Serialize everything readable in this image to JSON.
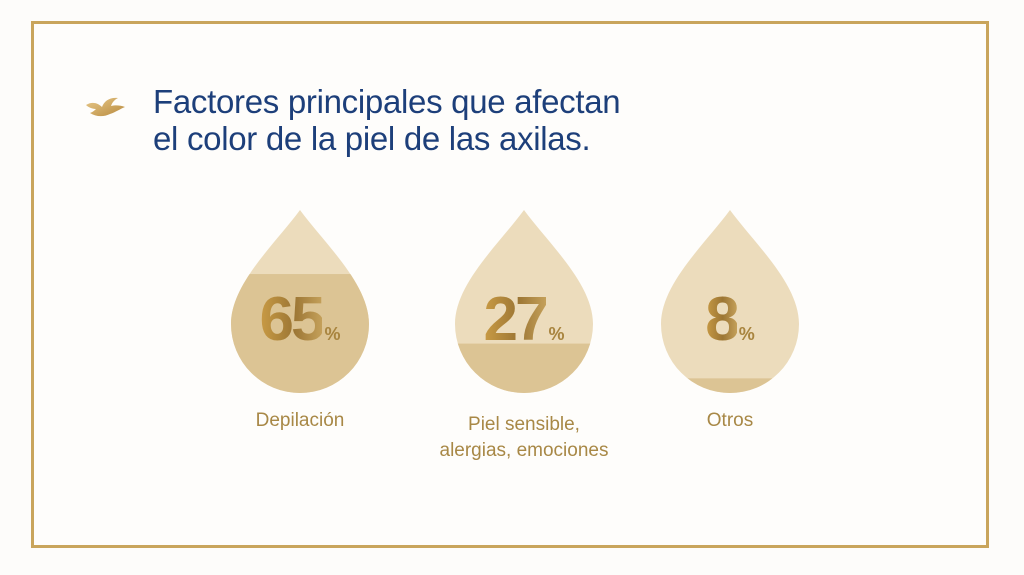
{
  "title": {
    "line1": "Factores principales que afectan",
    "line2": "el color de la piel de las axilas."
  },
  "colors": {
    "frame": "#c9a55c",
    "title": "#1d3f7a",
    "drop_light": "#ecdcbc",
    "drop_fill": "#dcc494",
    "value": "#b08a3e",
    "label": "#a88846"
  },
  "factors": [
    {
      "value": "65",
      "unit": "%",
      "label_lines": [
        "Depilación"
      ],
      "fill_fraction": 0.65
    },
    {
      "value": "27",
      "unit": "%",
      "label_lines": [
        "Piel sensible,",
        "alergias, emociones"
      ],
      "fill_fraction": 0.27
    },
    {
      "value": "8",
      "unit": "%",
      "label_lines": [
        "Otros"
      ],
      "fill_fraction": 0.08
    }
  ],
  "icons": {
    "logo": "dove-icon"
  }
}
